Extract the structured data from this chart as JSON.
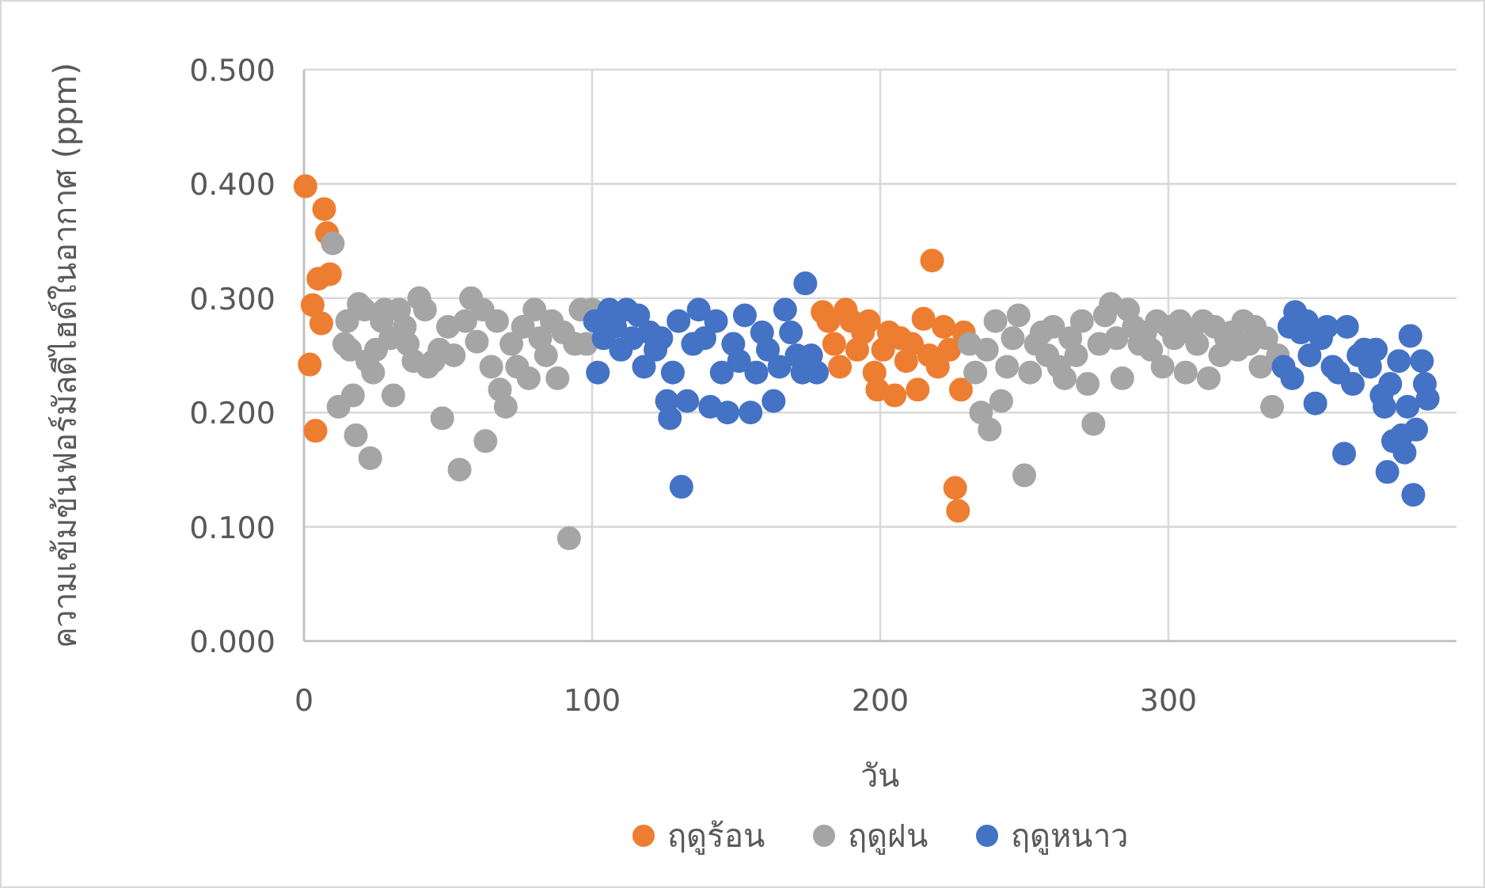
{
  "chart_data": {
    "type": "scatter",
    "xlabel": "วัน",
    "ylabel": "ความเข้มข้นฟอร์มัลดีไฮด์ในอากาศ (ppm)",
    "xlim": [
      0,
      400
    ],
    "xticks": [
      0,
      100,
      200,
      300
    ],
    "ylim": [
      0,
      0.5
    ],
    "yticks": [
      {
        "value": 0,
        "label": "0.000"
      },
      {
        "value": 0.1,
        "label": "0.100"
      },
      {
        "value": 0.2,
        "label": "0.200"
      },
      {
        "value": 0.3,
        "label": "0.300"
      },
      {
        "value": 0.4,
        "label": "0.400"
      },
      {
        "value": 0.5,
        "label": "0.500"
      }
    ],
    "grid": true,
    "legend": "bottom",
    "marker": "circle",
    "series": [
      {
        "name": "ฤดูร้อน",
        "color": "#ed7d31",
        "x": [
          0.5,
          2,
          3,
          4,
          5,
          6,
          7,
          8,
          9,
          180,
          182,
          184,
          186,
          188,
          190,
          192,
          194,
          196,
          198,
          199,
          201,
          203,
          205,
          207,
          209,
          211,
          213,
          215,
          217,
          218,
          220,
          222,
          224,
          226,
          227,
          228,
          229
        ],
        "values": [
          0.398,
          0.242,
          0.294,
          0.184,
          0.317,
          0.278,
          0.378,
          0.357,
          0.321,
          0.288,
          0.28,
          0.26,
          0.24,
          0.29,
          0.28,
          0.255,
          0.27,
          0.28,
          0.235,
          0.22,
          0.255,
          0.27,
          0.215,
          0.265,
          0.245,
          0.26,
          0.22,
          0.282,
          0.25,
          0.333,
          0.24,
          0.275,
          0.255,
          0.134,
          0.114,
          0.22,
          0.27
        ]
      },
      {
        "name": "ฤดูฝน",
        "color": "#a5a5a5",
        "x": [
          10,
          12,
          14,
          15,
          16,
          17,
          18,
          19,
          21,
          22,
          23,
          24,
          25,
          27,
          28,
          30,
          31,
          33,
          35,
          36,
          38,
          40,
          42,
          43,
          45,
          47,
          48,
          50,
          52,
          54,
          56,
          58,
          60,
          62,
          63,
          65,
          67,
          68,
          70,
          72,
          74,
          76,
          78,
          80,
          82,
          84,
          86,
          88,
          90,
          92,
          94,
          96,
          98,
          100,
          231,
          233,
          235,
          237,
          238,
          240,
          242,
          244,
          246,
          248,
          250,
          252,
          254,
          256,
          258,
          260,
          262,
          264,
          266,
          268,
          270,
          272,
          274,
          276,
          278,
          280,
          282,
          284,
          286,
          288,
          290,
          292,
          294,
          296,
          298,
          300,
          302,
          304,
          306,
          308,
          310,
          312,
          314,
          316,
          318,
          320,
          322,
          324,
          326,
          328,
          330,
          332,
          334,
          336,
          338
        ],
        "values": [
          0.348,
          0.205,
          0.26,
          0.28,
          0.255,
          0.215,
          0.18,
          0.295,
          0.29,
          0.245,
          0.16,
          0.235,
          0.255,
          0.28,
          0.29,
          0.265,
          0.215,
          0.29,
          0.275,
          0.26,
          0.245,
          0.3,
          0.29,
          0.24,
          0.245,
          0.255,
          0.195,
          0.275,
          0.25,
          0.15,
          0.28,
          0.3,
          0.262,
          0.29,
          0.175,
          0.24,
          0.28,
          0.22,
          0.205,
          0.26,
          0.24,
          0.275,
          0.23,
          0.29,
          0.265,
          0.25,
          0.28,
          0.23,
          0.27,
          0.09,
          0.26,
          0.29,
          0.26,
          0.29,
          0.26,
          0.235,
          0.2,
          0.255,
          0.185,
          0.28,
          0.21,
          0.24,
          0.265,
          0.285,
          0.145,
          0.235,
          0.26,
          0.27,
          0.25,
          0.275,
          0.24,
          0.23,
          0.265,
          0.25,
          0.28,
          0.225,
          0.19,
          0.26,
          0.285,
          0.295,
          0.265,
          0.23,
          0.29,
          0.275,
          0.26,
          0.27,
          0.255,
          0.28,
          0.24,
          0.275,
          0.265,
          0.28,
          0.235,
          0.27,
          0.26,
          0.28,
          0.23,
          0.275,
          0.25,
          0.265,
          0.27,
          0.255,
          0.28,
          0.26,
          0.275,
          0.24,
          0.265,
          0.205,
          0.25
        ]
      },
      {
        "name": "ฤดูหนาว",
        "color": "#4472c4",
        "x": [
          101,
          102,
          104,
          106,
          108,
          110,
          112,
          114,
          116,
          118,
          120,
          122,
          124,
          126,
          127,
          128,
          130,
          131,
          133,
          135,
          137,
          139,
          141,
          143,
          145,
          147,
          149,
          151,
          153,
          155,
          157,
          159,
          161,
          163,
          165,
          167,
          169,
          171,
          173,
          174,
          176,
          178,
          340,
          342,
          343,
          344,
          346,
          348,
          349,
          351,
          353,
          355,
          357,
          359,
          361,
          362,
          364,
          366,
          368,
          370,
          372,
          374,
          375,
          376,
          377,
          378,
          380,
          381,
          382,
          383,
          384,
          385,
          386,
          388,
          389,
          390
        ],
        "values": [
          0.28,
          0.235,
          0.265,
          0.29,
          0.275,
          0.255,
          0.29,
          0.265,
          0.285,
          0.24,
          0.27,
          0.255,
          0.265,
          0.21,
          0.195,
          0.235,
          0.28,
          0.135,
          0.21,
          0.26,
          0.29,
          0.265,
          0.205,
          0.28,
          0.235,
          0.2,
          0.26,
          0.245,
          0.285,
          0.2,
          0.235,
          0.27,
          0.255,
          0.21,
          0.24,
          0.29,
          0.27,
          0.25,
          0.235,
          0.313,
          0.25,
          0.235,
          0.24,
          0.275,
          0.23,
          0.288,
          0.27,
          0.28,
          0.25,
          0.208,
          0.265,
          0.275,
          0.24,
          0.235,
          0.164,
          0.275,
          0.225,
          0.25,
          0.255,
          0.24,
          0.255,
          0.215,
          0.205,
          0.148,
          0.225,
          0.175,
          0.245,
          0.18,
          0.165,
          0.205,
          0.267,
          0.128,
          0.185,
          0.245,
          0.225,
          0.212
        ]
      }
    ]
  }
}
